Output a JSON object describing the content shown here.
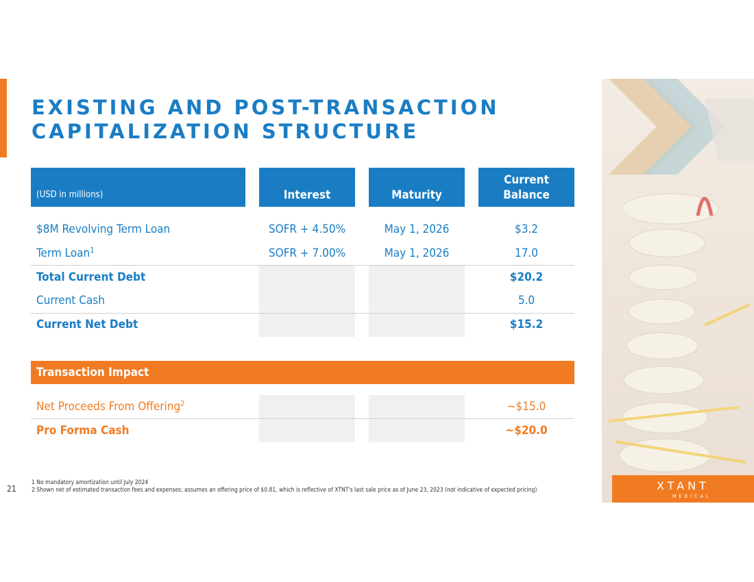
{
  "header": {
    "title_lines": [
      "EXISTING AND POST-TRANSACTION",
      "CAPITALIZATION STRUCTURE"
    ]
  },
  "table": {
    "columns": [
      "(USD in millions)",
      "Interest",
      "Maturity",
      "Current Balance"
    ],
    "rows": [
      {
        "label": "$8M Revolving Term Loan",
        "interest": "SOFR + 4.50%",
        "maturity": "May 1, 2026",
        "balance": "$3.2"
      },
      {
        "label": "Term Loan",
        "note": "1",
        "interest": "SOFR + 7.00%",
        "maturity": "May 1, 2026",
        "balance": "17.0"
      },
      {
        "label": "Total Current Debt",
        "balance": "$20.2"
      },
      {
        "label": "Current Cash",
        "balance": "5.0"
      },
      {
        "label": "Current Net Debt",
        "balance": "$15.2"
      }
    ],
    "section": "Transaction Impact",
    "impact_rows": [
      {
        "label": "Net Proceeds From Offering",
        "note": "2",
        "balance": "~$15.0"
      },
      {
        "label": "Pro Forma Cash",
        "balance": "~$20.0"
      }
    ]
  },
  "footnotes": [
    "1 No mandatory amortization until July 2024",
    "2 Shown net of estimated transaction fees and expenses; assumes an offering price of $0.81, which is reflective of XTNT's last sale price as of June 23, 2023 (not indicative of expected pricing)"
  ],
  "page_number": "21",
  "logo": {
    "name": "XTANT",
    "sub": "MEDICAL"
  }
}
